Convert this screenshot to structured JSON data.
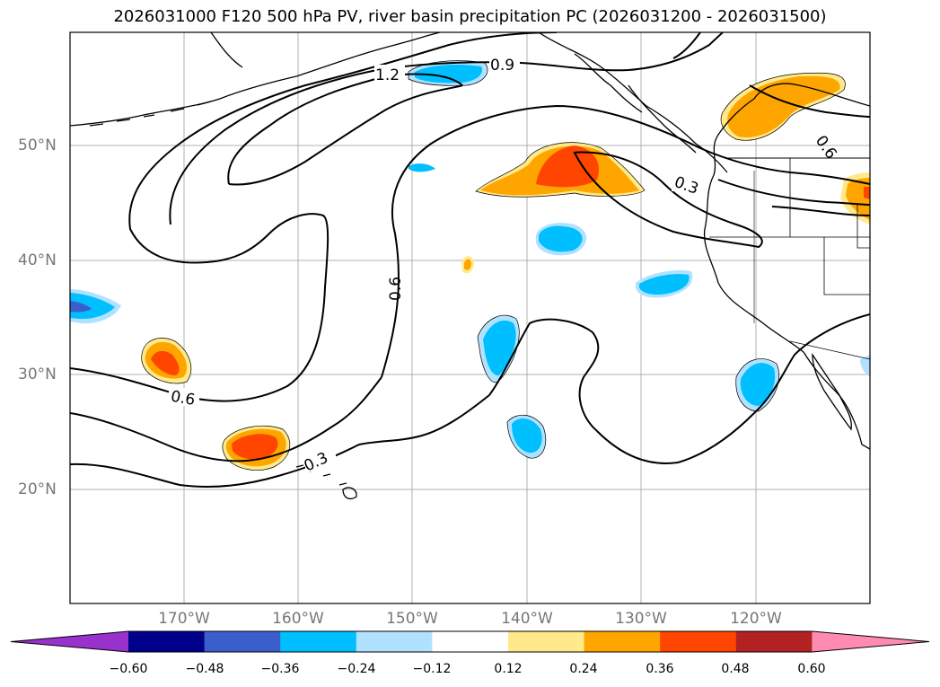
{
  "title": "2026031000 F120 500 hPa PV, river basin precipitation PC (2026031200 - 2026031500)",
  "map": {
    "lat_labels": [
      "50°N",
      "40°N",
      "30°N",
      "20°N"
    ],
    "lon_labels": [
      "170°W",
      "160°W",
      "150°W",
      "140°W",
      "130°W",
      "120°W"
    ],
    "gridlines": true,
    "pv_contour_labels": [
      "1.2",
      "0.9",
      "0.6",
      "0.6",
      "0.6",
      "0.3",
      "0.3"
    ]
  },
  "colorbar": {
    "ticks": [
      "−0.60",
      "−0.48",
      "−0.36",
      "−0.24",
      "−0.12",
      "0.12",
      "0.24",
      "0.36",
      "0.48",
      "0.60"
    ],
    "colors": [
      "#9932cc",
      "#00008b",
      "#3a5fcd",
      "#00bfff",
      "#b0e2ff",
      "#ffffff",
      "#ffe98a",
      "#ffa500",
      "#ff4500",
      "#b22222",
      "#ff8cb0"
    ],
    "extend": "both"
  }
}
